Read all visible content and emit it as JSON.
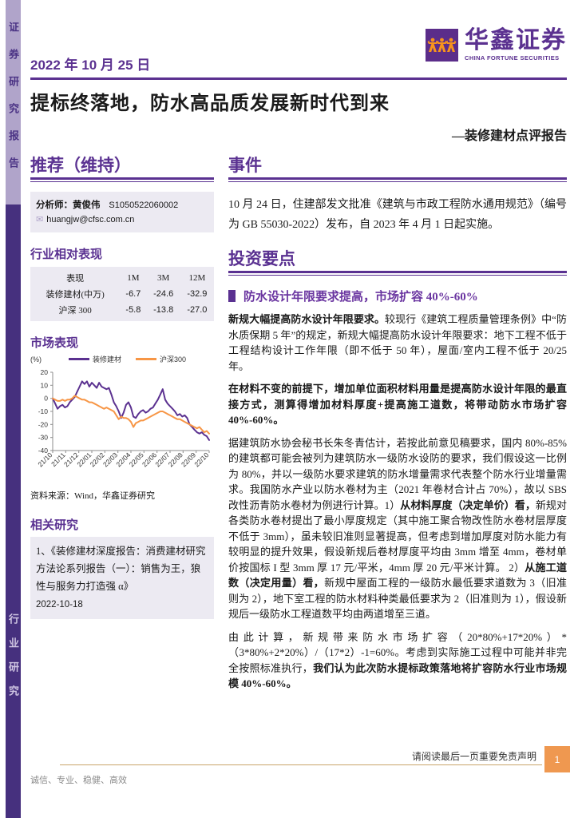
{
  "sidebar": {
    "top_label": "证券研究报告",
    "bottom_label": "行业研究"
  },
  "header": {
    "date": "2022 年 10 月 25 日",
    "logo_cn": "华鑫证券",
    "logo_en": "CHINA FORTUNE SECURITIES"
  },
  "title": "提标终落地，防水高品质发展新时代到来",
  "subtitle": "—装修建材点评报告",
  "left": {
    "rating_heading": "推荐（维持）",
    "analyst": {
      "label": "分析师：黄俊伟",
      "code": "S1050522060002",
      "email": "huangjw@cfsc.com.cn"
    },
    "relative_heading": "行业相对表现",
    "table": {
      "headers": [
        "表现",
        "1M",
        "3M",
        "12M"
      ],
      "rows": [
        [
          "装修建材(中万)",
          "-6.7",
          "-24.6",
          "-32.9"
        ],
        [
          "沪深 300",
          "-5.8",
          "-13.8",
          "-27.0"
        ]
      ]
    },
    "market_heading": "市场表现",
    "source": "资料来源：Wind，华鑫证券研究",
    "related_heading": "相关研究",
    "related_item": "1、《装修建材深度报告：消费建材研究方法论系列报告（一）：销售为王，狼性与服务力打造强 α》",
    "related_date": "2022-10-18"
  },
  "right": {
    "event_heading": "事件",
    "event_text": "10 月 24 日，住建部发文批准《建筑与市政工程防水通用规范》（编号为 GB 55030-2022）发布，自 2023 年 4 月 1 日起实施。",
    "points_heading": "投资要点",
    "section_heading": "防水设计年限要求提高，市场扩容 40%-60%",
    "paragraphs": [
      [
        {
          "t": "新规大幅提高防水设计年限要求。",
          "b": true
        },
        {
          "t": "较现行《建筑工程质量管理条例》中“防水质保期 5 年”的规定，新规大幅提高防水设计年限要求：地下工程不低于工程结构设计工作年限（即不低于 50 年），屋面/室内工程不低于 20/25 年。",
          "b": false
        }
      ],
      [
        {
          "t": "在材料不变的前提下，增加单位面积材料用量是提高防水设计年限的最直接方式，测算得增加材料厚度+提高施工道数，将带动防水市场扩容 40%-60%。",
          "b": true
        }
      ],
      [
        {
          "t": "据建筑防水协会秘书长朱冬青估计，若按此前意见稿要求，国内 80%-85%的建筑都可能会被列为建筑防水一级防水设防的要求，我们假设这一比例为 80%，并以一级防水要求建筑的防水增量需求代表整个防水行业增量需求。我国防水产业以防水卷材为主（2021 年卷材合计占 70%），故以 SBS 改性沥青防水卷材为例进行计算。1）",
          "b": false
        },
        {
          "t": "从材料厚度（决定单价）看，",
          "b": true
        },
        {
          "t": "新规对各类防水卷材提出了最小厚度规定（其中施工聚合物改性防水卷材层厚度不低于 3mm），虽未较旧准则显著提高，但考虑到增加厚度对防水能力有较明显的提升效果，假设新规后卷材厚度平均由 3mm 增至 4mm，卷材单价按国标 I 型 3mm 厚 17 元/平米，4mm 厚 20 元/平米计算。 2）",
          "b": false
        },
        {
          "t": "从施工道数（决定用量）看，",
          "b": true
        },
        {
          "t": "新规中屋面工程的一级防水最低要求道数为 3（旧准则为 2），地下室工程的防水材料种类最低要求为 2（旧准则为 1），假设新规后一级防水工程道数平均由两道增至三道。",
          "b": false
        }
      ],
      [
        {
          "t": "由此计算，新规带来防水市场扩容（20*80%+17*20%）*（3*80%+2*20%）/（17*2）-1=60%。考虑到实际施工过程中可能并非完全按照标准执行，",
          "b": false
        },
        {
          "t": "我们认为此次防水提标政策落地将扩容防水行业市场规模 40%-60%。",
          "b": true
        }
      ]
    ]
  },
  "footer": {
    "disclaimer": "请阅读最后一页重要免责声明",
    "page": "1",
    "slogan": "诚信、专业、稳健、高效"
  },
  "colors": {
    "brand_purple": "#5b3190",
    "sidebar_light": "#b0a4ca",
    "sidebar_dark": "#46307e",
    "box_lavender": "#eceaf2",
    "accent_orange": "#ef9850",
    "footer_line_tan": "#c8a36a"
  },
  "chart_data": {
    "type": "line",
    "title": "市场表现",
    "unit": "(%)",
    "ylim": [
      -40,
      20
    ],
    "yticks": [
      20,
      10,
      0,
      -10,
      -20,
      -30,
      -40
    ],
    "x_labels": [
      "21/10",
      "21/11",
      "21/12",
      "22/01",
      "22/02",
      "22/03",
      "22/04",
      "22/05",
      "22/06",
      "22/07",
      "22/08",
      "22/09",
      "22/10"
    ],
    "legend_position": "top",
    "grid": false,
    "source": "资料来源：Wind，华鑫证券研究",
    "series": [
      {
        "name": "装修建材",
        "color": "#5b3190",
        "values": [
          0,
          -4,
          -8,
          -6,
          -5,
          -7,
          -6,
          -3,
          -1,
          1,
          5,
          9,
          13,
          11,
          13,
          9,
          12,
          10,
          8,
          12,
          9,
          8,
          7,
          8,
          3,
          -3,
          -6,
          -10,
          -15,
          -11,
          -5,
          -3,
          -7,
          -14,
          -15,
          -12,
          -10,
          -9,
          -11,
          -10,
          -8,
          -7,
          -4,
          -1,
          3,
          7,
          -1,
          -4,
          -6,
          -8,
          -10,
          -13,
          -12,
          -14,
          -13,
          -15,
          -20,
          -22,
          -24,
          -26,
          -27,
          -26,
          -28,
          -29,
          -32
        ]
      },
      {
        "name": "沪深300",
        "color": "#f79646",
        "values": [
          0,
          -1,
          -2,
          -2,
          -1,
          -2,
          -1,
          -1,
          0,
          2,
          1,
          0,
          -1,
          -1,
          -2,
          -3,
          -3,
          -4,
          -5,
          -6,
          -7,
          -8,
          -7,
          -8,
          -9,
          -10,
          -13,
          -16,
          -14,
          -15,
          -15,
          -16,
          -18,
          -22,
          -19,
          -18,
          -17,
          -17,
          -16,
          -15,
          -14,
          -13,
          -12,
          -11,
          -10,
          -10,
          -11,
          -12,
          -13,
          -14,
          -15,
          -16,
          -16,
          -17,
          -18,
          -19,
          -20,
          -21,
          -22,
          -23,
          -22,
          -24,
          -26,
          -25,
          -27
        ]
      }
    ]
  }
}
